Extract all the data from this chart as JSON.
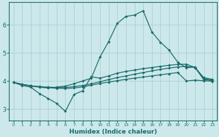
{
  "xlabel": "Humidex (Indice chaleur)",
  "background_color": "#cce8eb",
  "grid_color": "#aacfd4",
  "line_color": "#1a6b6a",
  "xlim": [
    -0.5,
    23.5
  ],
  "ylim": [
    2.6,
    6.8
  ],
  "yticks": [
    3,
    4,
    5,
    6
  ],
  "xticks": [
    0,
    1,
    2,
    3,
    4,
    5,
    6,
    7,
    8,
    9,
    10,
    11,
    12,
    13,
    14,
    15,
    16,
    17,
    18,
    19,
    20,
    21,
    22,
    23
  ],
  "line_peak_x": [
    0,
    1,
    2,
    3,
    4,
    5,
    6,
    7,
    8,
    9,
    10,
    11,
    12,
    13,
    14,
    15,
    16,
    17,
    18,
    19,
    20,
    21,
    22,
    23
  ],
  "line_peak_y": [
    3.95,
    3.88,
    3.82,
    3.78,
    3.75,
    3.78,
    3.82,
    3.9,
    4.0,
    4.1,
    4.85,
    5.4,
    6.05,
    6.3,
    6.35,
    6.5,
    5.75,
    5.38,
    5.1,
    4.67,
    4.47,
    4.5,
    4.08,
    4.03
  ],
  "line_upper_x": [
    0,
    1,
    2,
    3,
    4,
    5,
    6,
    7,
    8,
    9,
    10,
    11,
    12,
    13,
    14,
    15,
    16,
    17,
    18,
    19,
    20,
    21,
    22,
    23
  ],
  "line_upper_y": [
    3.95,
    3.88,
    3.83,
    3.8,
    3.78,
    3.77,
    3.77,
    3.8,
    3.84,
    3.9,
    3.97,
    4.05,
    4.12,
    4.18,
    4.24,
    4.3,
    4.36,
    4.41,
    4.46,
    4.5,
    4.52,
    4.48,
    4.12,
    4.06
  ],
  "line_mid_x": [
    0,
    1,
    2,
    3,
    4,
    5,
    6,
    7,
    8,
    9,
    10,
    11,
    12,
    13,
    14,
    15,
    16,
    17,
    18,
    19,
    20,
    21,
    22,
    23
  ],
  "line_mid_y": [
    3.95,
    3.88,
    3.83,
    3.79,
    3.76,
    3.74,
    3.73,
    3.75,
    3.79,
    3.85,
    3.91,
    3.96,
    4.01,
    4.06,
    4.1,
    4.14,
    4.18,
    4.22,
    4.26,
    4.3,
    4.0,
    4.03,
    4.01,
    3.99
  ],
  "line_low_x": [
    0,
    1,
    2,
    3,
    4,
    5,
    6,
    7,
    8,
    9,
    10,
    11,
    12,
    13,
    14,
    15,
    16,
    17,
    18,
    19,
    20,
    21,
    22,
    23
  ],
  "line_low_y": [
    3.95,
    3.84,
    3.78,
    3.55,
    3.38,
    3.2,
    2.92,
    3.52,
    3.65,
    4.15,
    4.1,
    4.18,
    4.28,
    4.34,
    4.39,
    4.44,
    4.48,
    4.52,
    4.56,
    4.59,
    4.6,
    4.48,
    4.05,
    4.02
  ]
}
